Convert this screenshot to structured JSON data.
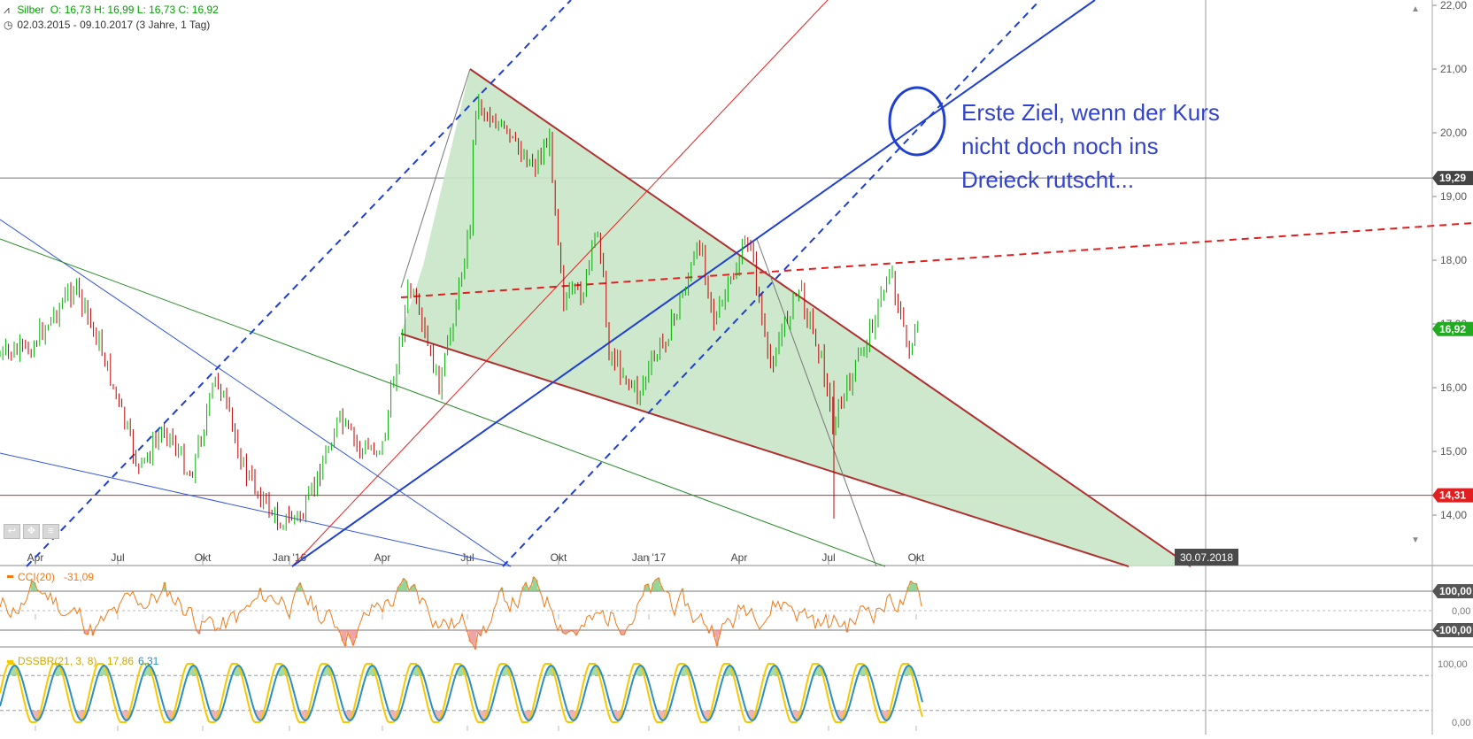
{
  "header": {
    "symbol": "Silber",
    "ohlc": "O: 16,73  H: 16,99  L: 16,73  C: 16,92",
    "range": "02.03.2015 - 09.10.2017  (3 Jahre, 1 Tag)",
    "symbol_icon": "mini-chart-icon",
    "range_icon": "clock-icon"
  },
  "annotation": {
    "text": "Erste Ziel, wenn der Kurs\nnicht doch noch ins\nDreieck rutscht..."
  },
  "chart_data": [
    {
      "type": "candlestick",
      "title": "",
      "x_tick_labels": [
        "Apr",
        "Jul",
        "Okt",
        "Jan '16",
        "Apr",
        "Jul",
        "Okt",
        "Jan '17",
        "Apr",
        "Jul",
        "Okt"
      ],
      "y_tick_labels": [
        "22,00",
        "21,00",
        "20,00",
        "19,00",
        "18,00",
        "17,00",
        "16,00",
        "15,00",
        "14,00"
      ],
      "ylim": [
        13.7,
        22.3
      ],
      "price_markers": [
        {
          "label": "19,29",
          "value": 19.29,
          "style": "gray"
        },
        {
          "label": "16,92",
          "value": 16.92,
          "style": "green"
        },
        {
          "label": "14,31",
          "value": 14.31,
          "style": "red"
        }
      ],
      "date_marker": "30.07.2018",
      "close_series": [
        {
          "date": "2015-03-02",
          "close": 16.5
        },
        {
          "date": "2015-04-01",
          "close": 16.6
        },
        {
          "date": "2015-05-18",
          "close": 17.6
        },
        {
          "date": "2015-06-15",
          "close": 16.6
        },
        {
          "date": "2015-07-24",
          "close": 14.7
        },
        {
          "date": "2015-08-20",
          "close": 15.4
        },
        {
          "date": "2015-09-15",
          "close": 14.6
        },
        {
          "date": "2015-10-12",
          "close": 16.2
        },
        {
          "date": "2015-11-10",
          "close": 14.7
        },
        {
          "date": "2015-12-14",
          "close": 13.9
        },
        {
          "date": "2016-01-10",
          "close": 14.0
        },
        {
          "date": "2016-02-15",
          "close": 15.5
        },
        {
          "date": "2016-03-10",
          "close": 15.0
        },
        {
          "date": "2016-04-01",
          "close": 15.1
        },
        {
          "date": "2016-04-28",
          "close": 17.6
        },
        {
          "date": "2016-05-30",
          "close": 16.0
        },
        {
          "date": "2016-06-30",
          "close": 18.5
        },
        {
          "date": "2016-07-05",
          "close": 20.5
        },
        {
          "date": "2016-07-25",
          "close": 20.2
        },
        {
          "date": "2016-08-15",
          "close": 19.8
        },
        {
          "date": "2016-09-05",
          "close": 19.5
        },
        {
          "date": "2016-09-20",
          "close": 19.9
        },
        {
          "date": "2016-10-05",
          "close": 17.4
        },
        {
          "date": "2016-10-25",
          "close": 17.5
        },
        {
          "date": "2016-11-10",
          "close": 18.6
        },
        {
          "date": "2016-11-20",
          "close": 16.6
        },
        {
          "date": "2016-12-20",
          "close": 15.9
        },
        {
          "date": "2017-01-25",
          "close": 17.0
        },
        {
          "date": "2017-02-24",
          "close": 18.3
        },
        {
          "date": "2017-03-10",
          "close": 17.0
        },
        {
          "date": "2017-04-15",
          "close": 18.4
        },
        {
          "date": "2017-05-05",
          "close": 16.3
        },
        {
          "date": "2017-06-05",
          "close": 17.6
        },
        {
          "date": "2017-06-28",
          "close": 16.5
        },
        {
          "date": "2017-07-10",
          "close": 15.4
        },
        {
          "date": "2017-08-05",
          "close": 16.4
        },
        {
          "date": "2017-08-25",
          "close": 17.2
        },
        {
          "date": "2017-09-08",
          "close": 17.9
        },
        {
          "date": "2017-09-25",
          "close": 16.6
        },
        {
          "date": "2017-10-09",
          "close": 16.92
        }
      ]
    },
    {
      "type": "line",
      "title": "CCI(20)",
      "value_label": "-31,09",
      "y_tick_labels": [
        "100,00",
        "0,00",
        "-100,00"
      ],
      "levels": [
        100,
        0,
        -100
      ]
    },
    {
      "type": "line",
      "title": "DSSBR(21, 3, 8)",
      "value_labels": [
        "17,86",
        "6,31"
      ],
      "y_tick_labels": [
        "100,00",
        "0,00"
      ],
      "ylim": [
        0,
        100
      ]
    }
  ],
  "colors": {
    "triangle_fill": "#c8e6c8",
    "triangle_edge": "#b03030",
    "blue_lines": "#1f3fd0",
    "thin_blue": "#3355dd",
    "red_line": "#e02020",
    "green_line": "#2a8a2a",
    "candle_up": "#00b000",
    "candle_down": "#c00000",
    "cci_line": "#ef7a1a",
    "dss_yellow": "#f5c800",
    "dss_blue": "#2a8fc0",
    "annotation": "#3344cc"
  }
}
